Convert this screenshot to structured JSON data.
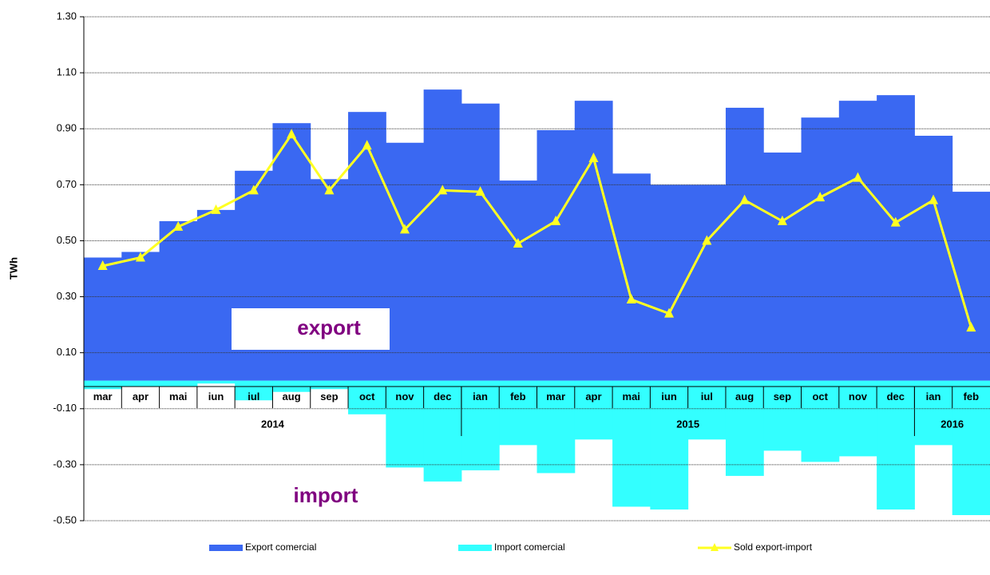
{
  "chart_data": {
    "type": "bar_line",
    "y_axis_label": "TWh",
    "categories": [
      "mar",
      "apr",
      "mai",
      "iun",
      "iul",
      "aug",
      "sep",
      "oct",
      "nov",
      "dec",
      "ian",
      "feb",
      "mar",
      "apr",
      "mai",
      "iun",
      "iul",
      "aug",
      "sep",
      "oct",
      "nov",
      "dec",
      "ian",
      "feb"
    ],
    "category_years": [
      "2014",
      "2014",
      "2014",
      "2014",
      "2014",
      "2014",
      "2014",
      "2014",
      "2014",
      "2014",
      "2015",
      "2015",
      "2015",
      "2015",
      "2015",
      "2015",
      "2015",
      "2015",
      "2015",
      "2015",
      "2015",
      "2015",
      "2016",
      "2016"
    ],
    "series": [
      {
        "name": "Export comercial",
        "kind": "bar",
        "color": "#3a68f2",
        "values": [
          0.44,
          0.46,
          0.57,
          0.61,
          0.75,
          0.92,
          0.72,
          0.96,
          0.85,
          1.04,
          0.99,
          0.715,
          0.895,
          1.0,
          0.74,
          0.7,
          0.7,
          0.975,
          0.815,
          0.94,
          1.0,
          1.02,
          0.875,
          0.675
        ]
      },
      {
        "name": "Import comercial",
        "kind": "bar",
        "color": "#33ffff",
        "values": [
          -0.03,
          -0.02,
          -0.02,
          -0.01,
          -0.07,
          -0.04,
          -0.03,
          -0.12,
          -0.31,
          -0.36,
          -0.32,
          -0.23,
          -0.33,
          -0.21,
          -0.45,
          -0.46,
          -0.21,
          -0.34,
          -0.25,
          -0.29,
          -0.27,
          -0.46,
          -0.23,
          -0.48
        ]
      },
      {
        "name": "Sold export-import",
        "kind": "line",
        "color": "#ffff22",
        "values": [
          0.41,
          0.44,
          0.55,
          0.61,
          0.68,
          0.88,
          0.68,
          0.84,
          0.54,
          0.68,
          0.675,
          0.49,
          0.57,
          0.795,
          0.29,
          0.24,
          0.5,
          0.645,
          0.57,
          0.655,
          0.725,
          0.565,
          0.645,
          0.19
        ]
      }
    ],
    "annotations": [
      "export",
      "import"
    ],
    "ylim": [
      -0.5,
      1.3
    ],
    "yticks": [
      {
        "value": 1.3,
        "label": "1.30"
      },
      {
        "value": 1.1,
        "label": "1.10"
      },
      {
        "value": 0.9,
        "label": "0.90"
      },
      {
        "value": 0.7,
        "label": "0.70"
      },
      {
        "value": 0.5,
        "label": "0.50"
      },
      {
        "value": 0.3,
        "label": "0.30"
      },
      {
        "value": 0.1,
        "label": "0.10"
      },
      {
        "value": -0.1,
        "label": "-0.10"
      },
      {
        "value": -0.3,
        "label": "-0.30"
      },
      {
        "value": -0.5,
        "label": "-0.50"
      }
    ],
    "grid": true,
    "legend": "bottom"
  }
}
